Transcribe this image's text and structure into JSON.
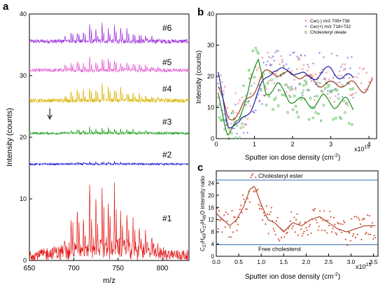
{
  "panels": {
    "a": {
      "letter": "a",
      "chart_data": {
        "type": "line",
        "xlabel": "m/z",
        "ylabel": "Intensity (counts)",
        "xlim": [
          650,
          830
        ],
        "ylim": [
          0,
          40
        ],
        "xticks": [
          650,
          700,
          750,
          800
        ],
        "yticks": [
          0,
          10,
          20,
          30,
          40
        ],
        "traces": [
          {
            "label": "#6",
            "color": "#9b30d9",
            "baseline": 35.5,
            "peak_scale": 3.6
          },
          {
            "label": "#5",
            "color": "#e35ad2",
            "baseline": 30.8,
            "peak_scale": 3.0
          },
          {
            "label": "#4",
            "color": "#d9b400",
            "baseline": 25.9,
            "peak_scale": 3.4
          },
          {
            "label": "#3",
            "color": "#1aa01a",
            "baseline": 20.6,
            "peak_scale": 1.3
          },
          {
            "label": "#2",
            "color": "#1b1bd6",
            "baseline": 15.6,
            "peak_scale": 0.5
          },
          {
            "label": "#1",
            "color": "#e41a1a",
            "baseline": 0.6,
            "peak_scale": 13.2
          }
        ],
        "peak_mz": [
          690,
          697,
          704,
          711,
          718,
          725,
          732,
          739,
          746,
          753,
          760,
          767,
          774,
          781,
          788,
          795
        ],
        "peak_rel": [
          0.3,
          0.55,
          0.7,
          0.6,
          0.95,
          0.75,
          1.0,
          0.8,
          0.9,
          0.7,
          0.65,
          0.55,
          0.45,
          0.35,
          0.25,
          0.15
        ],
        "annotation_arrow_mz": 673
      }
    },
    "b": {
      "letter": "b",
      "chart_data": {
        "type": "scatter",
        "xlabel": "Sputter ion dose density (cm",
        "xlabel_sup": "-2",
        "xlabel_end": ")",
        "ylabel": "Intensity (counts)",
        "xlim": [
          0,
          4.2
        ],
        "ylim": [
          0,
          40
        ],
        "xticks": [
          0,
          1,
          2,
          3,
          4
        ],
        "yticks": [
          0,
          10,
          20,
          30,
          40
        ],
        "x_multiplier": "x10",
        "x_multiplier_exp": "15",
        "legend": [
          "Cer(-) m/z 708+738",
          "Cer(+) m/z 718+732",
          "Cholesteryl oleate"
        ],
        "series": [
          {
            "name": "Cer(-) m/z 708+738",
            "color": "#e0595a",
            "line_color": "#9e3d1f",
            "marker": "x",
            "trend_x": [
              0.05,
              0.3,
              0.6,
              0.9,
              1.2,
              1.5,
              1.8,
              2.1,
              2.4,
              2.7,
              3.0,
              3.3,
              3.6,
              3.9,
              4.1
            ],
            "trend_y": [
              16,
              7,
              8,
              14,
              20,
              22,
              20,
              21,
              19,
              18,
              17,
              18,
              17,
              16,
              18
            ]
          },
          {
            "name": "Cer(+) m/z 718+732",
            "color": "#4444dd",
            "line_color": "#1c1ca8",
            "marker": "+",
            "trend_x": [
              0.05,
              0.3,
              0.6,
              0.9,
              1.2,
              1.5,
              1.8,
              2.1,
              2.4,
              2.7,
              3.0,
              3.3,
              3.6
            ],
            "trend_y": [
              20,
              5,
              4,
              10,
              17,
              23,
              21,
              22,
              19,
              21,
              22,
              20,
              19
            ]
          },
          {
            "name": "Cholesteryl oleate",
            "color": "#2faa2f",
            "line_color": "#178a17",
            "marker": "o",
            "trend_x": [
              0.05,
              0.3,
              0.6,
              0.9,
              1.1,
              1.3,
              1.6,
              1.9,
              2.2,
              2.5,
              2.8,
              3.1,
              3.4,
              3.6
            ],
            "trend_y": [
              14,
              2,
              5,
              20,
              24,
              15,
              17,
              13,
              12,
              11,
              13,
              11,
              12,
              10
            ]
          }
        ]
      }
    },
    "c": {
      "letter": "c",
      "chart_data": {
        "type": "scatter",
        "xlabel": "Sputter ion dose density (cm",
        "xlabel_sup": "-2",
        "xlabel_end": ")",
        "ylabel": "C27H45/C27H45O intensity ratio",
        "xlim": [
          0,
          3.6
        ],
        "ylim": [
          0,
          28
        ],
        "xticks": [
          0.0,
          0.5,
          1.0,
          1.5,
          2.0,
          2.5,
          3.0,
          3.5
        ],
        "xtick_labels": [
          "0.0",
          "0.5",
          "1.0",
          "1.5",
          "2.0",
          "2.5",
          "3.0",
          "3.5"
        ],
        "yticks": [
          0,
          4,
          8,
          12,
          16,
          20,
          24
        ],
        "x_multiplier": "x10",
        "x_multiplier_exp": "15",
        "reference_lines": [
          {
            "label": "Cholesteryl ester",
            "y": 25
          },
          {
            "label": "Free cholesterol",
            "y": 3.8
          }
        ],
        "series": [
          {
            "name": "C27H45/C27H45O",
            "color": "#d45a3f",
            "line_color": "#a83c22",
            "trend_x": [
              0.0,
              0.15,
              0.3,
              0.45,
              0.6,
              0.75,
              0.85,
              1.0,
              1.15,
              1.3,
              1.5,
              1.7,
              1.9,
              2.1,
              2.3,
              2.5,
              2.7,
              2.9,
              3.1,
              3.3,
              3.5
            ],
            "trend_y": [
              14,
              12,
              10,
              12,
              16,
              22,
              23,
              17,
              12,
              11,
              8,
              11,
              10,
              12,
              13,
              11,
              9,
              8,
              9,
              10,
              10
            ]
          }
        ]
      }
    }
  },
  "ylabel_c_parts": [
    "C",
    "27",
    "H",
    "45",
    "/C",
    "27",
    "H",
    "45",
    "O intensity ratio"
  ]
}
